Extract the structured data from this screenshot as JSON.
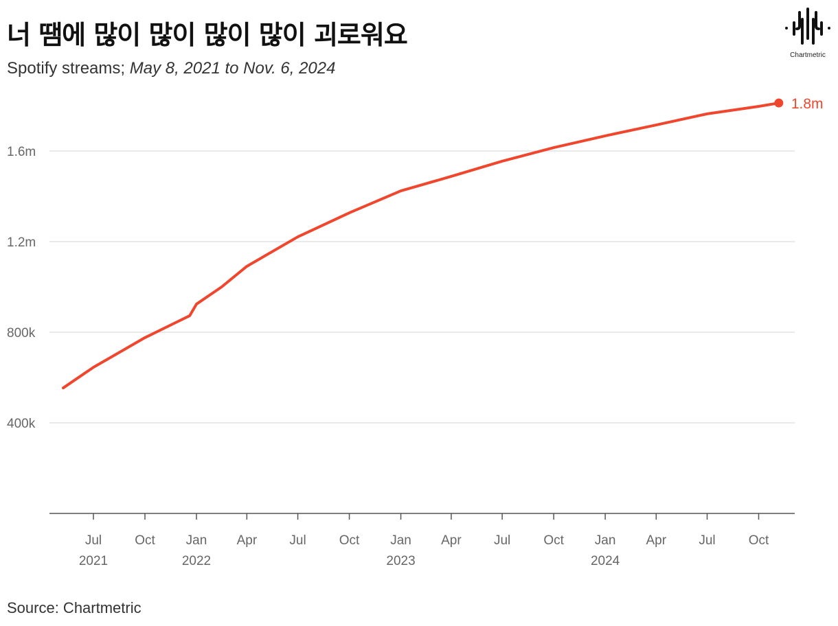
{
  "title": "너 땜에 많이 많이 많이 많이 괴로워요",
  "subtitle_prefix": "Spotify streams; ",
  "subtitle_range": "May 8, 2021 to Nov. 6, 2024",
  "source": "Source: Chartmetric",
  "logo_text": "Chartmetric",
  "colors": {
    "line": "#f0462d",
    "grid": "#e3e3e3",
    "axis": "#555555"
  },
  "chart_data": {
    "type": "line",
    "title": "너 땜에 많이 많이 많이 많이 괴로워요",
    "xlabel": "",
    "ylabel": "",
    "ylim": [
      0,
      1900000
    ],
    "grid": true,
    "y_ticks": [
      {
        "value": 400000,
        "label": "400k"
      },
      {
        "value": 800000,
        "label": "800k"
      },
      {
        "value": 1200000,
        "label": "1.2m"
      },
      {
        "value": 1600000,
        "label": "1.6m"
      }
    ],
    "x_ticks": [
      {
        "date": "2021-07-01",
        "label": "Jul",
        "year": "2021"
      },
      {
        "date": "2021-10-01",
        "label": "Oct",
        "year": ""
      },
      {
        "date": "2022-01-01",
        "label": "Jan",
        "year": "2022"
      },
      {
        "date": "2022-04-01",
        "label": "Apr",
        "year": ""
      },
      {
        "date": "2022-07-01",
        "label": "Jul",
        "year": ""
      },
      {
        "date": "2022-10-01",
        "label": "Oct",
        "year": ""
      },
      {
        "date": "2023-01-01",
        "label": "Jan",
        "year": "2023"
      },
      {
        "date": "2023-04-01",
        "label": "Apr",
        "year": ""
      },
      {
        "date": "2023-07-01",
        "label": "Jul",
        "year": ""
      },
      {
        "date": "2023-10-01",
        "label": "Oct",
        "year": ""
      },
      {
        "date": "2024-01-01",
        "label": "Jan",
        "year": "2024"
      },
      {
        "date": "2024-04-01",
        "label": "Apr",
        "year": ""
      },
      {
        "date": "2024-07-01",
        "label": "Jul",
        "year": ""
      },
      {
        "date": "2024-10-01",
        "label": "Oct",
        "year": ""
      }
    ],
    "series": [
      {
        "name": "Spotify streams",
        "x": [
          "2021-05-08",
          "2021-07-01",
          "2021-10-01",
          "2021-12-20",
          "2022-01-01",
          "2022-02-15",
          "2022-04-01",
          "2022-07-01",
          "2022-10-01",
          "2023-01-01",
          "2023-04-01",
          "2023-07-01",
          "2023-10-01",
          "2024-01-01",
          "2024-04-01",
          "2024-07-01",
          "2024-10-01",
          "2024-11-06"
        ],
        "values": [
          554000,
          645000,
          776000,
          873000,
          924000,
          1000000,
          1091000,
          1221000,
          1327000,
          1424000,
          1488000,
          1555000,
          1615000,
          1667000,
          1715000,
          1764000,
          1797000,
          1812000
        ]
      }
    ],
    "end_label": "1.8m"
  }
}
